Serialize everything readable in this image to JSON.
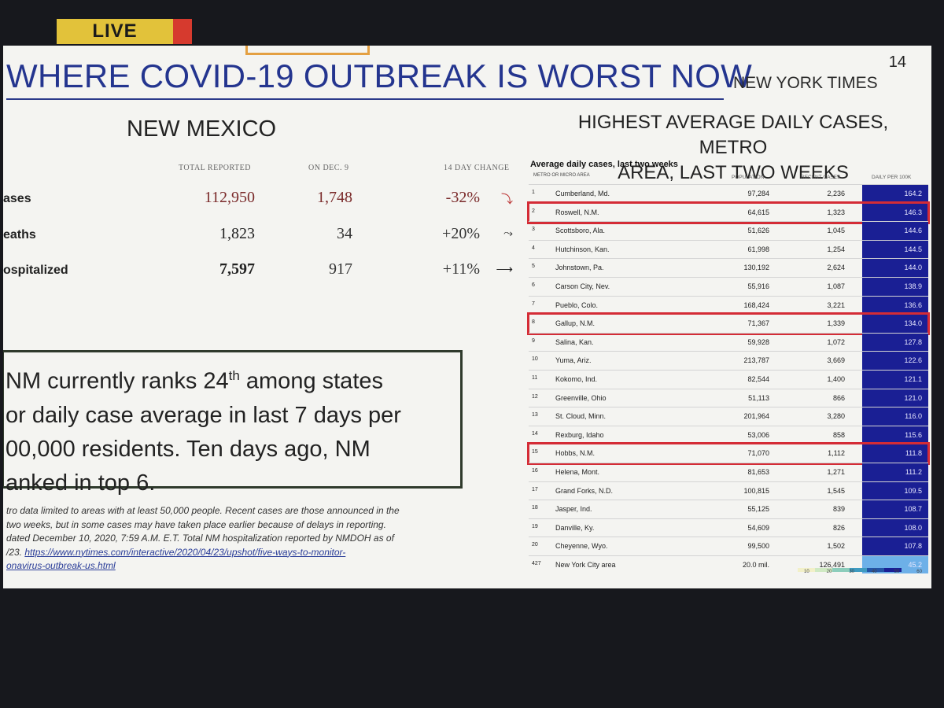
{
  "live_label": "LIVE",
  "slide": {
    "number": "14",
    "title": "WHERE COVID-19 OUTBREAK IS WORST NOW",
    "source": "NEW YORK TIMES"
  },
  "left": {
    "heading": "NEW MEXICO",
    "columns": [
      "TOTAL REPORTED",
      "ON DEC. 9",
      "14 DAY CHANGE"
    ],
    "rows": [
      {
        "label": "ases",
        "total": "112,950",
        "dec9": "1,748",
        "change": "-32%",
        "arrow": "⤵"
      },
      {
        "label": "eaths",
        "total": "1,823",
        "dec9": "34",
        "change": "+20%",
        "arrow": "⤳"
      },
      {
        "label": "ospitalized",
        "total": "7,597",
        "dec9": "917",
        "change": "+11%",
        "arrow": "⟶"
      }
    ],
    "ranks_text_1": "NM currently ranks 24",
    "ranks_sup": "th",
    "ranks_text_2": " among states",
    "ranks_line_2": "or daily case average in last 7 days per",
    "ranks_line_3": "00,000 residents. Ten days ago, NM",
    "ranks_line_4": "anked in top 6.",
    "footnote_lines": [
      "tro data limited to areas with at least 50,000 people. Recent cases are those announced in the",
      "two weeks, but in some cases may have taken place earlier because of delays in reporting.",
      "dated December 10, 2020, 7:59 A.M. E.T. Total NM hospitalization reported by NMDOH as of",
      "/23."
    ],
    "footnote_link_1": "https://www.nytimes.com/interactive/2020/04/23/upshot/five-ways-to-monitor-",
    "footnote_link_2": "onavirus-outbreak-us.html"
  },
  "right": {
    "title_line_1": "HIGHEST AVERAGE DAILY CASES, METRO",
    "title_line_2": "AREA, LAST TWO WEEKS",
    "caption": "Average daily cases, last two weeks",
    "sub_header": "METRO OR MICRO AREA",
    "col_population": "POPULATION",
    "col_recent": "RECENT CASES",
    "col_daily": "DAILY PER 100K",
    "rows": [
      {
        "rank": "1",
        "name": "Cumberland, Md.",
        "pop": "97,284",
        "recent": "2,236",
        "daily": "164.2"
      },
      {
        "rank": "2",
        "name": "Roswell, N.M.",
        "pop": "64,615",
        "recent": "1,323",
        "daily": "146.3"
      },
      {
        "rank": "3",
        "name": "Scottsboro, Ala.",
        "pop": "51,626",
        "recent": "1,045",
        "daily": "144.6"
      },
      {
        "rank": "4",
        "name": "Hutchinson, Kan.",
        "pop": "61,998",
        "recent": "1,254",
        "daily": "144.5"
      },
      {
        "rank": "5",
        "name": "Johnstown, Pa.",
        "pop": "130,192",
        "recent": "2,624",
        "daily": "144.0"
      },
      {
        "rank": "6",
        "name": "Carson City, Nev.",
        "pop": "55,916",
        "recent": "1,087",
        "daily": "138.9"
      },
      {
        "rank": "7",
        "name": "Pueblo, Colo.",
        "pop": "168,424",
        "recent": "3,221",
        "daily": "136.6"
      },
      {
        "rank": "8",
        "name": "Gallup, N.M.",
        "pop": "71,367",
        "recent": "1,339",
        "daily": "134.0"
      },
      {
        "rank": "9",
        "name": "Salina, Kan.",
        "pop": "59,928",
        "recent": "1,072",
        "daily": "127.8"
      },
      {
        "rank": "10",
        "name": "Yuma, Ariz.",
        "pop": "213,787",
        "recent": "3,669",
        "daily": "122.6"
      },
      {
        "rank": "11",
        "name": "Kokomo, Ind.",
        "pop": "82,544",
        "recent": "1,400",
        "daily": "121.1"
      },
      {
        "rank": "12",
        "name": "Greenville, Ohio",
        "pop": "51,113",
        "recent": "866",
        "daily": "121.0"
      },
      {
        "rank": "13",
        "name": "St. Cloud, Minn.",
        "pop": "201,964",
        "recent": "3,280",
        "daily": "116.0"
      },
      {
        "rank": "14",
        "name": "Rexburg, Idaho",
        "pop": "53,006",
        "recent": "858",
        "daily": "115.6"
      },
      {
        "rank": "15",
        "name": "Hobbs, N.M.",
        "pop": "71,070",
        "recent": "1,112",
        "daily": "111.8"
      },
      {
        "rank": "16",
        "name": "Helena, Mont.",
        "pop": "81,653",
        "recent": "1,271",
        "daily": "111.2"
      },
      {
        "rank": "17",
        "name": "Grand Forks, N.D.",
        "pop": "100,815",
        "recent": "1,545",
        "daily": "109.5"
      },
      {
        "rank": "18",
        "name": "Jasper, Ind.",
        "pop": "55,125",
        "recent": "839",
        "daily": "108.7"
      },
      {
        "rank": "19",
        "name": "Danville, Ky.",
        "pop": "54,609",
        "recent": "826",
        "daily": "108.0"
      },
      {
        "rank": "20",
        "name": "Cheyenne, Wyo.",
        "pop": "99,500",
        "recent": "1,502",
        "daily": "107.8"
      },
      {
        "rank": "427",
        "name": "New York City area",
        "pop": "20.0 mil.",
        "recent": "126,491",
        "daily": "45.2"
      }
    ],
    "highlighted_ranks": [
      "2",
      "8",
      "15"
    ],
    "legend_labels": [
      "10",
      "20",
      "30",
      "40",
      "50",
      "60"
    ],
    "colors": {
      "bar": "#1a1f94",
      "bar_light": "#6db0e8",
      "highlight": "#d42c36"
    }
  }
}
